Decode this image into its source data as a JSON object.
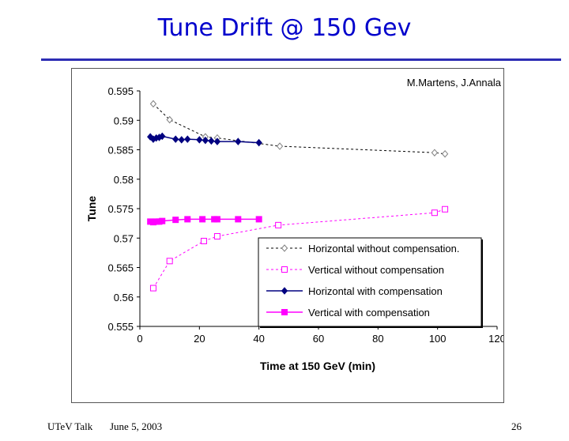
{
  "slide": {
    "title": "Tune Drift @ 150 Gev",
    "footer_left": "UTeV Talk",
    "footer_date": "June 5, 2003",
    "page_number": "26"
  },
  "colors": {
    "title": "#0000cc",
    "rule": "#2d2db4",
    "navy": "#000080",
    "magenta": "#ff00ff",
    "open_series": "#808080"
  },
  "chart_data": {
    "type": "scatter",
    "annotation": "M.Martens, J.Annala",
    "xlabel": "Time at 150 GeV (min)",
    "ylabel": "Tune",
    "xlim": [
      0,
      120
    ],
    "ylim": [
      0.555,
      0.595
    ],
    "x_ticks": [
      "0",
      "20",
      "40",
      "60",
      "80",
      "100",
      "120"
    ],
    "y_ticks": [
      "0.595",
      "0.59",
      "0.585",
      "0.58",
      "0.575",
      "0.57",
      "0.565",
      "0.56",
      "0.555"
    ],
    "legend_position": "bottom-right",
    "series": [
      {
        "name": "Horizontal without compensation.",
        "marker": "diamond-open",
        "line": "dashed",
        "color": "#000000",
        "x": [
          4.5,
          10,
          22,
          26,
          47,
          99,
          102.5
        ],
        "y": [
          0.5928,
          0.5901,
          0.5872,
          0.587,
          0.5856,
          0.5845,
          0.5843
        ]
      },
      {
        "name": "Vertical without compensation",
        "marker": "square-open",
        "line": "dashed",
        "color": "#ff00ff",
        "x": [
          4.5,
          10,
          21.5,
          26,
          46.5,
          99,
          102.5
        ],
        "y": [
          0.5615,
          0.5661,
          0.5695,
          0.5703,
          0.5722,
          0.5743,
          0.5749
        ]
      },
      {
        "name": "Horizontal with compensation",
        "marker": "diamond-filled",
        "line": "solid",
        "color": "#000080",
        "x": [
          3.5,
          4.5,
          5.5,
          6.5,
          7.5,
          12,
          14,
          16,
          20,
          22,
          24,
          26,
          33,
          40
        ],
        "y": [
          0.5872,
          0.5868,
          0.587,
          0.5871,
          0.5873,
          0.5868,
          0.5867,
          0.5868,
          0.5867,
          0.5866,
          0.5865,
          0.5864,
          0.5864,
          0.5862
        ]
      },
      {
        "name": "Vertical with compensation",
        "marker": "square-filled",
        "line": "solid",
        "color": "#ff00ff",
        "x": [
          3.5,
          4.5,
          5.5,
          6.5,
          7.5,
          12,
          16,
          21,
          25,
          26,
          33,
          40
        ],
        "y": [
          0.5728,
          0.5727,
          0.5728,
          0.5728,
          0.5729,
          0.5731,
          0.5732,
          0.5732,
          0.5732,
          0.5732,
          0.5732,
          0.5732
        ]
      }
    ]
  }
}
